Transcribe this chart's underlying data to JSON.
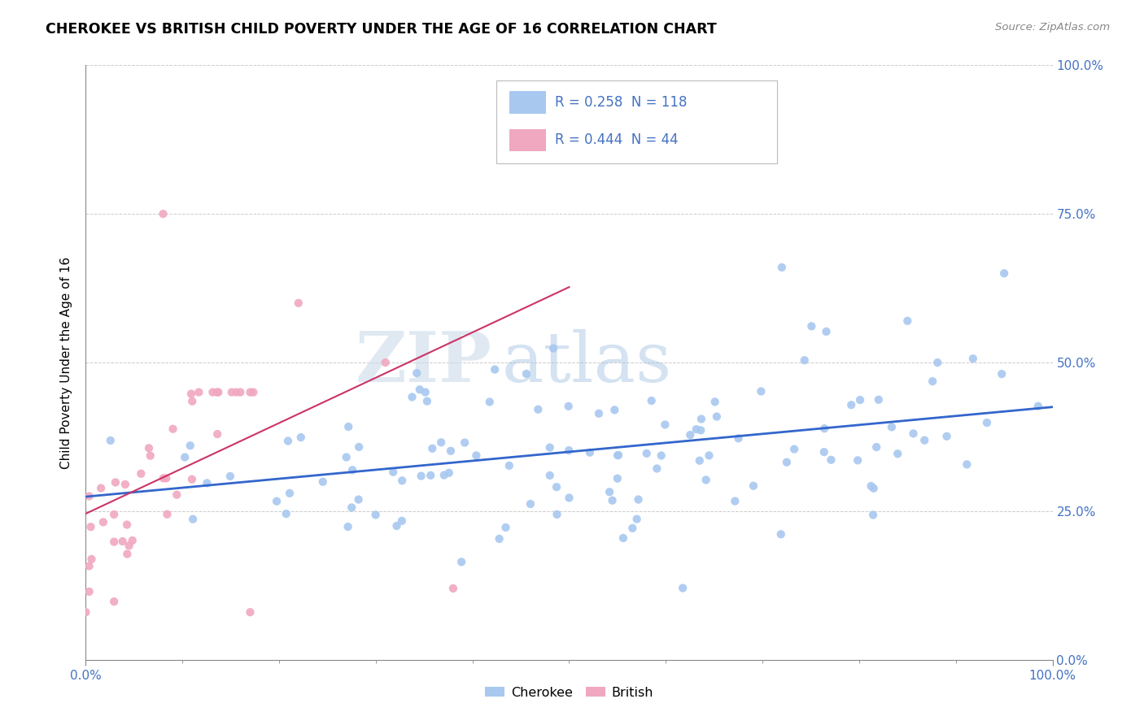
{
  "title": "CHEROKEE VS BRITISH CHILD POVERTY UNDER THE AGE OF 16 CORRELATION CHART",
  "source": "Source: ZipAtlas.com",
  "ylabel": "Child Poverty Under the Age of 16",
  "cherokee_R": 0.258,
  "cherokee_N": 118,
  "british_R": 0.444,
  "british_N": 44,
  "cherokee_color": "#a8c8f0",
  "british_color": "#f0a8c0",
  "cherokee_line_color": "#3366cc",
  "british_line_color": "#cc3366",
  "legend_text_color": "#4472c4",
  "xlim": [
    0,
    1
  ],
  "ylim": [
    0,
    1
  ],
  "yticks": [
    0.0,
    0.25,
    0.5,
    0.75,
    1.0
  ],
  "ytick_labels": [
    "0.0%",
    "25.0%",
    "50.0%",
    "75.0%",
    "100.0%"
  ],
  "xtick_labels_show": [
    "0.0%",
    "100.0%"
  ],
  "xtick_positions_show": [
    0.0,
    1.0
  ],
  "tick_color": "#4472c4",
  "grid_color": "#cccccc",
  "background_color": "#ffffff",
  "watermark_color": "#d0e8f8"
}
